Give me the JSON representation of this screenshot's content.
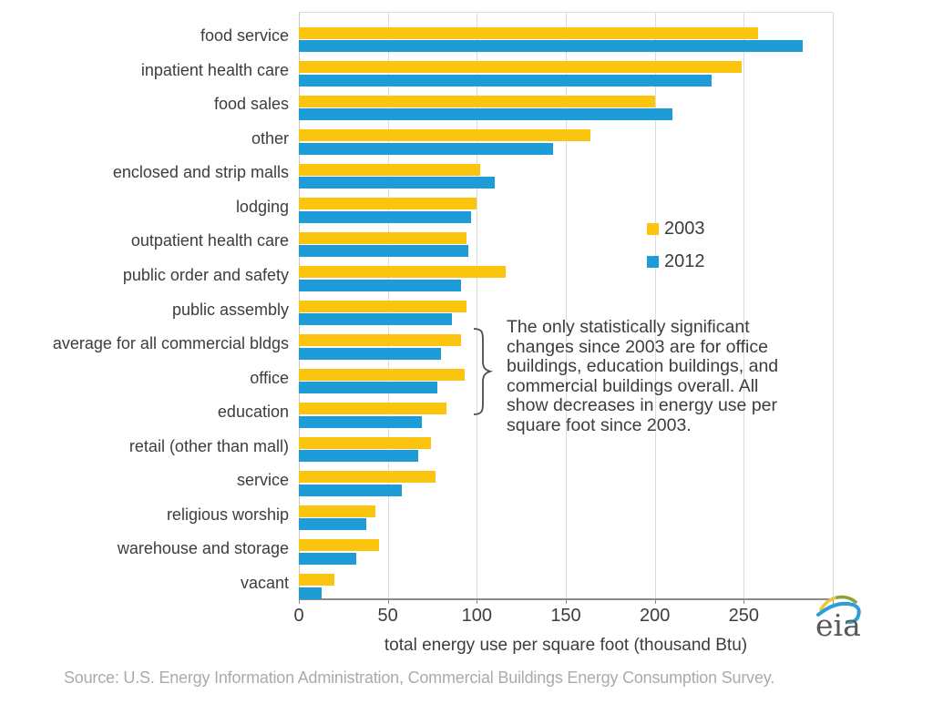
{
  "chart_data": {
    "type": "bar",
    "orientation": "horizontal",
    "title": "",
    "xlabel": "total energy use per square foot (thousand Btu)",
    "ylabel": "",
    "xlim": [
      0,
      300
    ],
    "ticks": [
      0,
      50,
      100,
      150,
      200,
      250
    ],
    "grid": true,
    "legend_position": "middle-right",
    "categories": [
      "food service",
      "inpatient health care",
      "food sales",
      "other",
      "enclosed and strip malls",
      "lodging",
      "outpatient health care",
      "public order and safety",
      "public assembly",
      "average for all commercial bldgs",
      "office",
      "education",
      "retail (other than mall)",
      "service",
      "religious worship",
      "warehouse and storage",
      "vacant"
    ],
    "series": [
      {
        "name": "2003",
        "color": "#FBC40F",
        "values": [
          258,
          249,
          200,
          164,
          102,
          100,
          94,
          116,
          94,
          91,
          93,
          83,
          74,
          77,
          43,
          45,
          20
        ]
      },
      {
        "name": "2012",
        "color": "#1E9CD7",
        "values": [
          283,
          232,
          210,
          143,
          110,
          97,
          95,
          91,
          86,
          80,
          78,
          69,
          67,
          58,
          38,
          32,
          13
        ]
      }
    ]
  },
  "annotation": {
    "text": "The only statistically significant\nchanges since 2003 are for office\nbuildings, education buildings, and\ncommercial buildings overall. All\nshow decreases in energy use per\nsquare foot since 2003."
  },
  "source": "Source: U.S. Energy Information Administration, Commercial Buildings Energy Consumption Survey.",
  "logo": {
    "text": "eia"
  },
  "colors": {
    "grid": "#DCDCDC",
    "axis": "#8C8C8C",
    "text": "#3D3D3D",
    "source_text": "#ABABAB"
  }
}
